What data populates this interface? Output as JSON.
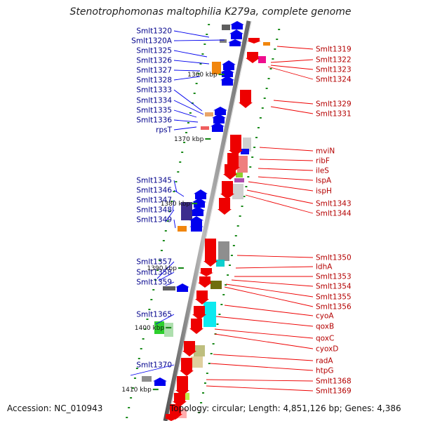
{
  "title": "Stenotrophomonas maltophilia K279a, complete genome",
  "footer": {
    "accession": "Accession: NC_010943",
    "topology": "Topology: circular; Length: 4,851,126 bp; Genes: 4,386"
  },
  "ticks": [
    "1360 kbp",
    "1370 kbp",
    "1380 kbp",
    "1390 kbp",
    "1400 kbp",
    "1410 kbp"
  ],
  "left_genes": [
    "Smlt1320",
    "Smlt1320A",
    "Smlt1325",
    "Smlt1326",
    "Smlt1327",
    "Smlt1328",
    "Smlt1333",
    "Smlt1334",
    "Smlt1335",
    "Smlt1336",
    "rpsT",
    "Smlt1345",
    "Smlt1346",
    "Smlt1347",
    "Smlt1348",
    "Smlt1349",
    "Smlt1357",
    "Smlt1358",
    "Smlt1359",
    "Smlt1365",
    "Smlt1370"
  ],
  "right_genes": [
    "Smlt1319",
    "Smlt1322",
    "Smlt1323",
    "Smlt1324",
    "Smlt1329",
    "Smlt1331",
    "mviN",
    "ribF",
    "ileS",
    "lspA",
    "ispH",
    "Smlt1343",
    "Smlt1344",
    "Smlt1350",
    "ldhA",
    "Smlt1353",
    "Smlt1354",
    "Smlt1355",
    "Smlt1356",
    "cyoA",
    "qoxB",
    "qoxC",
    "cyoxD",
    "radA",
    "htpG",
    "Smlt1368",
    "Smlt1369"
  ],
  "colors": {
    "left_strand": "#0000ee",
    "right_strand": "#ee0000",
    "backbone": "#888888",
    "left_label": "#00008b",
    "right_label": "#b40000",
    "marker": "#1a8a1a"
  }
}
